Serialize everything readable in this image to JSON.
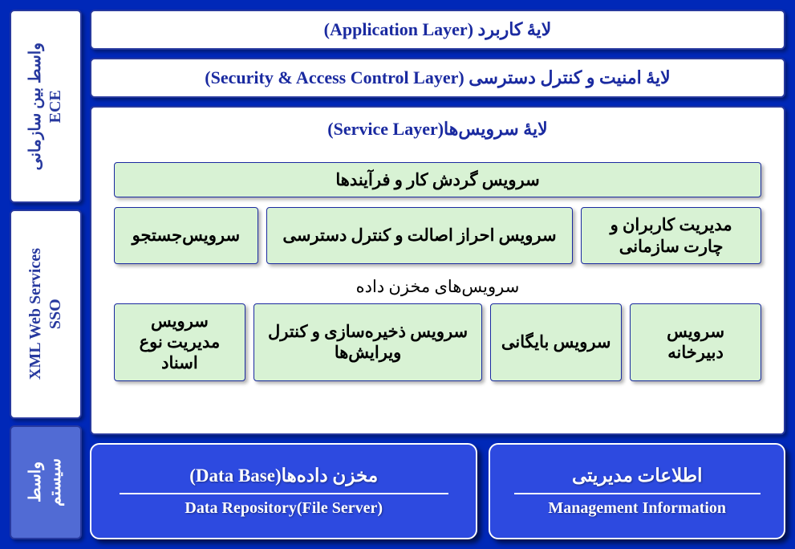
{
  "diagram": {
    "type": "layered-architecture",
    "background_color": "#0028b8",
    "box_border_color": "#27399f",
    "box_bg_color": "#ffffff",
    "service_box_bg": "#d8f2d4",
    "bottom_box_bg": "#2d4ae0",
    "title_color": "#1a2aa0"
  },
  "sidebar": {
    "items": [
      {
        "label": "واسط بین سازمانی\nECE",
        "variant": "white"
      },
      {
        "label": "XML Web Services\nSSO",
        "variant": "white"
      },
      {
        "label": "واسط\nسیستم",
        "variant": "blue"
      }
    ]
  },
  "layers": {
    "app": "لایۀ کاربرد (Application Layer)",
    "security": "لایۀ امنیت و کنترل دسترسی (Security & Access Control Layer)",
    "service": "لایۀ سرویس‌ها(Service Layer)"
  },
  "services": {
    "row1": [
      {
        "label": "سرویس گردش کار و فرآیندها",
        "flex": 1
      }
    ],
    "row2": [
      {
        "label": "مدیریت کاربران و\nچارت سازمانی",
        "flex": 0.9
      },
      {
        "label": "سرویس احراز اصالت و کنترل دسترسی",
        "flex": 1.6
      },
      {
        "label": "سرویس‌جستجو",
        "flex": 0.7
      }
    ],
    "sub_title": "سرویس‌های مخزن داده",
    "row3": [
      {
        "label": "سرویس دبیرخانه",
        "flex": 0.7
      },
      {
        "label": "سرویس بایگانی",
        "flex": 0.7
      },
      {
        "label": "سرویس ذخیره‌سازی\nو کنترل ویرایش‌ها",
        "flex": 1.3
      },
      {
        "label": "سرویس مدیریت\nنوع اسناد",
        "flex": 0.7
      }
    ]
  },
  "bottom": {
    "right": {
      "title": "اطلاعات مدیریتی",
      "sub": "Management Information"
    },
    "left": {
      "title": "مخزن داده‌ها(Data Base)",
      "sub": "Data Repository(File Server)"
    }
  }
}
